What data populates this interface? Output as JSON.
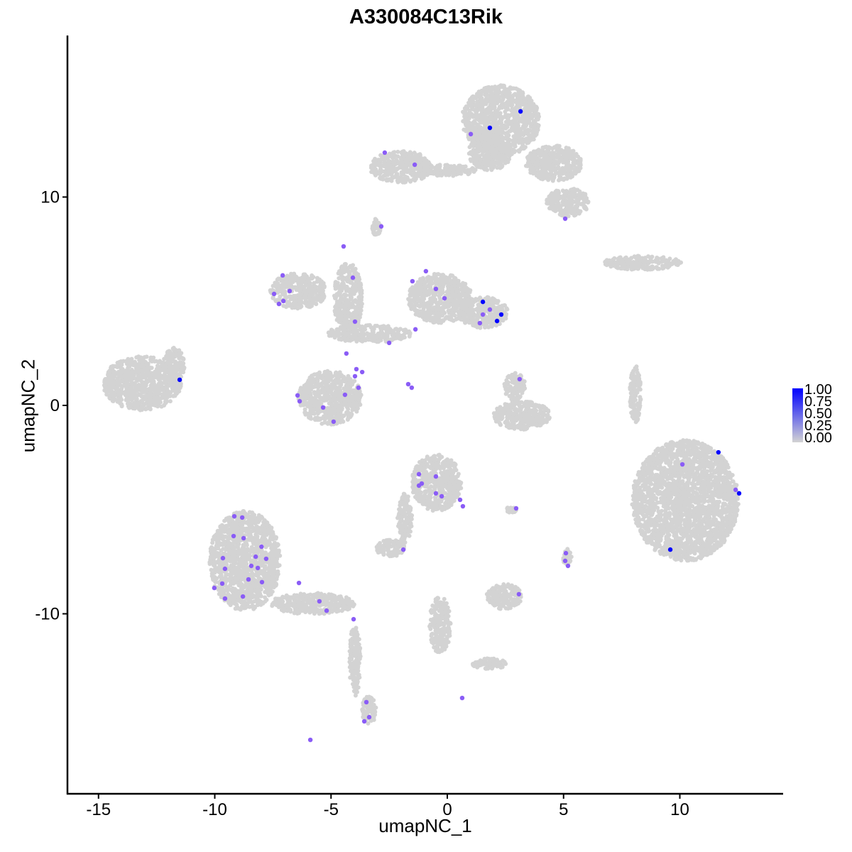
{
  "chart_data": {
    "type": "scatter",
    "title": "A330084C13Rik",
    "xlabel": "umapNC_1",
    "ylabel": "umapNC_2",
    "xlim": [
      -16.34,
      14.44
    ],
    "ylim": [
      -18.64,
      17.75
    ],
    "xticks": [
      -15,
      -10,
      -5,
      0,
      5,
      10
    ],
    "yticks": [
      -10,
      0,
      10
    ],
    "grid": false,
    "legend": {
      "position": "right",
      "ticks": [
        "1.00",
        "0.75",
        "0.50",
        "0.25",
        "0.00"
      ]
    },
    "color_low": "#d3d3d3",
    "color_high": "#0000ff",
    "background_clusters": [
      [
        2.29,
        13.66,
        1.68,
        1.7
      ],
      [
        1.83,
        12.13,
        0.92,
        0.85
      ],
      [
        4.58,
        11.62,
        1.22,
        0.85
      ],
      [
        5.19,
        9.74,
        0.92,
        0.68
      ],
      [
        -1.98,
        11.45,
        1.37,
        0.75
      ],
      [
        0,
        11.28,
        1.22,
        0.27
      ],
      [
        8.4,
        6.85,
        1.68,
        0.34
      ],
      [
        -13.13,
        1.06,
        1.68,
        1.29
      ],
      [
        -11.76,
        1.91,
        0.46,
        0.85
      ],
      [
        -6.41,
        5.49,
        1.22,
        0.85
      ],
      [
        -5.04,
        0.37,
        1.37,
        1.29
      ],
      [
        -0.31,
        5.14,
        1.37,
        1.19
      ],
      [
        1.53,
        4.46,
        1.07,
        0.75
      ],
      [
        -3.36,
        3.44,
        1.83,
        0.41
      ],
      [
        -4.27,
        5.14,
        0.61,
        1.7
      ],
      [
        3.2,
        -0.48,
        1.22,
        0.68
      ],
      [
        2.9,
        0.89,
        0.46,
        0.68
      ],
      [
        10.23,
        -4.57,
        2.29,
        2.9
      ],
      [
        8.09,
        0.55,
        0.24,
        1.36
      ],
      [
        -0.46,
        -3.71,
        1.07,
        1.36
      ],
      [
        -1.83,
        -5.42,
        0.31,
        1.19
      ],
      [
        -2.44,
        -6.85,
        0.61,
        0.41
      ],
      [
        -8.7,
        -7.46,
        1.53,
        2.39
      ],
      [
        -5.8,
        -9.51,
        1.83,
        0.51
      ],
      [
        -3.97,
        -12.23,
        0.24,
        1.7
      ],
      [
        -3.36,
        -14.62,
        0.31,
        0.68
      ],
      [
        2.44,
        -9.17,
        0.76,
        0.61
      ],
      [
        -0.31,
        -10.53,
        0.46,
        1.36
      ],
      [
        1.83,
        -12.4,
        0.76,
        0.27
      ],
      [
        -3.05,
        8.55,
        0.18,
        0.41
      ],
      [
        5.16,
        -7.29,
        0.18,
        0.41
      ],
      [
        2.75,
        -5.01,
        0.24,
        0.14
      ]
    ],
    "expressing_points": [
      [
        3.15,
        14.11,
        1
      ],
      [
        1.83,
        13.32,
        1
      ],
      [
        1.01,
        13.02,
        0.5
      ],
      [
        -2.69,
        12.13,
        0.5
      ],
      [
        -1.4,
        11.55,
        0.5
      ],
      [
        5.07,
        8.96,
        0.5
      ],
      [
        -2.84,
        8.59,
        0.5
      ],
      [
        -4.46,
        7.63,
        0.5
      ],
      [
        -7.08,
        6.24,
        0.5
      ],
      [
        -7.45,
        5.35,
        0.5
      ],
      [
        -6.78,
        5.49,
        0.5
      ],
      [
        -7.05,
        5.01,
        0.5
      ],
      [
        -7.24,
        4.87,
        0.5
      ],
      [
        -0.92,
        6.44,
        0.5
      ],
      [
        -1.5,
        5.96,
        0.5
      ],
      [
        -0.49,
        5.59,
        0.5
      ],
      [
        -0.12,
        5.14,
        0.5
      ],
      [
        -4.06,
        6.13,
        0.5
      ],
      [
        1.53,
        4.97,
        1
      ],
      [
        2.32,
        4.36,
        1
      ],
      [
        2.14,
        4.05,
        1
      ],
      [
        1.83,
        4.6,
        0.5
      ],
      [
        1.53,
        4.36,
        0.5
      ],
      [
        1.4,
        3.95,
        0.5
      ],
      [
        -1.37,
        3.65,
        0.5
      ],
      [
        -3.97,
        4.02,
        0.5
      ],
      [
        -2.5,
        3.0,
        0.5
      ],
      [
        -4.34,
        2.49,
        0.5
      ],
      [
        -3.91,
        1.74,
        0.5
      ],
      [
        -3.66,
        1.6,
        0.5
      ],
      [
        -3.97,
        1.4,
        0.5
      ],
      [
        -3.82,
        0.85,
        0.5
      ],
      [
        -4.4,
        0.51,
        0.5
      ],
      [
        -6.44,
        0.48,
        0.5
      ],
      [
        -6.35,
        0.2,
        0.5
      ],
      [
        -5.34,
        -0.1,
        0.5
      ],
      [
        -4.89,
        -0.78,
        0.5
      ],
      [
        -1.68,
        1.02,
        0.5
      ],
      [
        -1.53,
        0.85,
        0.5
      ],
      [
        3.11,
        1.26,
        0.5
      ],
      [
        -11.51,
        1.23,
        1
      ],
      [
        11.66,
        -2.25,
        1
      ],
      [
        10.11,
        -2.83,
        0.5
      ],
      [
        12.4,
        -4.05,
        0.5
      ],
      [
        12.55,
        -4.22,
        1
      ],
      [
        9.59,
        -6.92,
        1
      ],
      [
        -1.22,
        -3.3,
        0.5
      ],
      [
        -0.49,
        -3.41,
        0.5
      ],
      [
        -1.1,
        -3.75,
        0.5
      ],
      [
        -1.22,
        -3.85,
        0.5
      ],
      [
        -0.49,
        -4.22,
        0.5
      ],
      [
        -0.24,
        -4.36,
        0.5
      ],
      [
        0.55,
        -4.53,
        0.5
      ],
      [
        0.67,
        -4.84,
        0.5
      ],
      [
        2.96,
        -4.94,
        0.5
      ],
      [
        -1.89,
        -6.92,
        0.5
      ],
      [
        5.1,
        -7.09,
        0.5
      ],
      [
        5.07,
        -7.46,
        0.5
      ],
      [
        5.19,
        -7.7,
        0.5
      ],
      [
        3.08,
        -9.06,
        0.5
      ],
      [
        -9.16,
        -5.32,
        0.5
      ],
      [
        -8.82,
        -5.38,
        0.5
      ],
      [
        -9.19,
        -6.27,
        0.5
      ],
      [
        -8.76,
        -6.37,
        0.5
      ],
      [
        -7.99,
        -6.78,
        0.5
      ],
      [
        -8.24,
        -7.26,
        0.5
      ],
      [
        -9.65,
        -7.33,
        0.5
      ],
      [
        -9.56,
        -7.84,
        0.5
      ],
      [
        -8.43,
        -7.7,
        0.5
      ],
      [
        -8.15,
        -7.8,
        0.5
      ],
      [
        -7.79,
        -7.36,
        0.5
      ],
      [
        -8.55,
        -8.35,
        0.5
      ],
      [
        -7.97,
        -8.48,
        0.5
      ],
      [
        -9.68,
        -8.55,
        0.5
      ],
      [
        -10.02,
        -8.76,
        0.5
      ],
      [
        -8.79,
        -9.17,
        0.5
      ],
      [
        -9.56,
        -9.27,
        0.5
      ],
      [
        -6.38,
        -8.52,
        0.5
      ],
      [
        -5.5,
        -9.4,
        0.5
      ],
      [
        -5.19,
        -9.85,
        0.5
      ],
      [
        -4.03,
        -10.26,
        0.5
      ],
      [
        -3.48,
        -14.24,
        0.5
      ],
      [
        -3.36,
        -14.96,
        0.5
      ],
      [
        -3.57,
        -15.16,
        0.5
      ],
      [
        0.64,
        -14.04,
        0.5
      ],
      [
        -5.89,
        -16.05,
        0.5
      ]
    ]
  }
}
